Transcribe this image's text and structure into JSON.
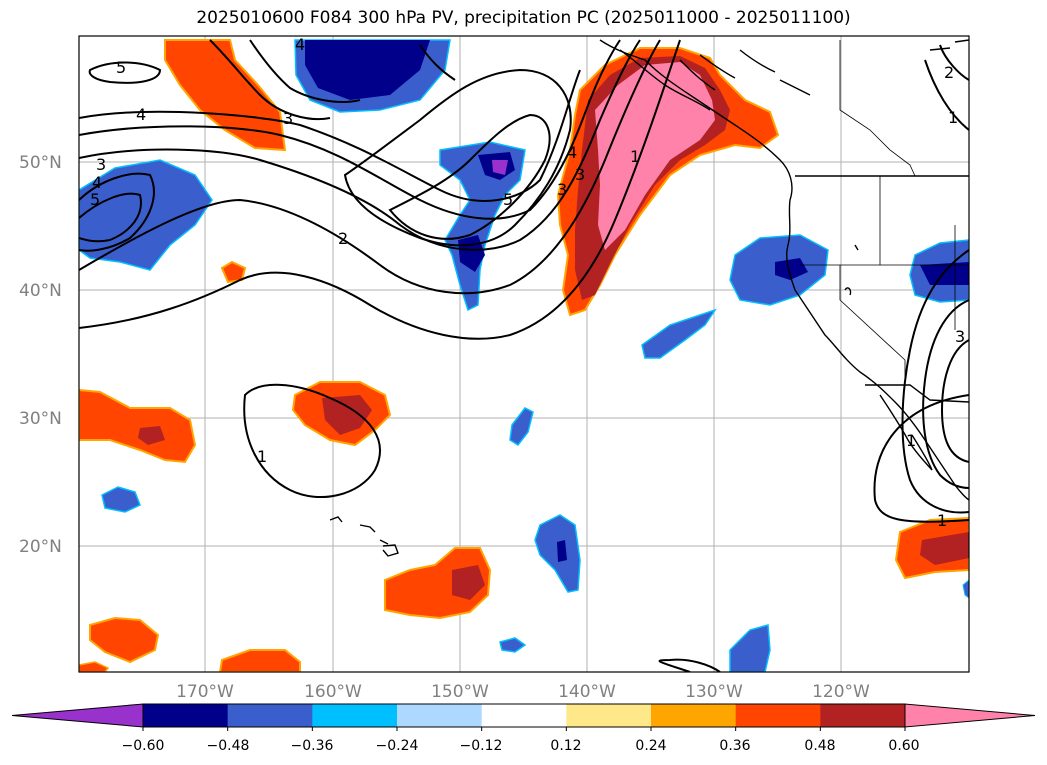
{
  "title": "2025010600 F084 300 hPa PV, precipitation PC (2025011000 - 2025011100)",
  "map": {
    "lat_labels": [
      "50°N",
      "40°N",
      "30°N",
      "20°N"
    ],
    "lon_labels": [
      "170°W",
      "160°W",
      "150°W",
      "140°W",
      "130°W",
      "120°W"
    ],
    "gridlines": true,
    "contour_labels": [
      "5",
      "4",
      "3",
      "4",
      "5",
      "4",
      "3",
      "2",
      "3",
      "5",
      "1",
      "1",
      "1",
      "3",
      "4",
      "3",
      "2",
      "1",
      "1"
    ]
  },
  "colorbar": {
    "ticks": [
      "−0.60",
      "−0.48",
      "−0.36",
      "−0.24",
      "−0.12",
      "0.12",
      "0.24",
      "0.36",
      "0.48",
      "0.60"
    ],
    "colors": [
      "#9932cc",
      "#00008b",
      "#3a5fcd",
      "#00bfff",
      "#add8ff",
      "#ffffff",
      "#ffe88a",
      "#ffa500",
      "#ff4500",
      "#b22222",
      "#ff82ab"
    ],
    "extend": "both"
  }
}
